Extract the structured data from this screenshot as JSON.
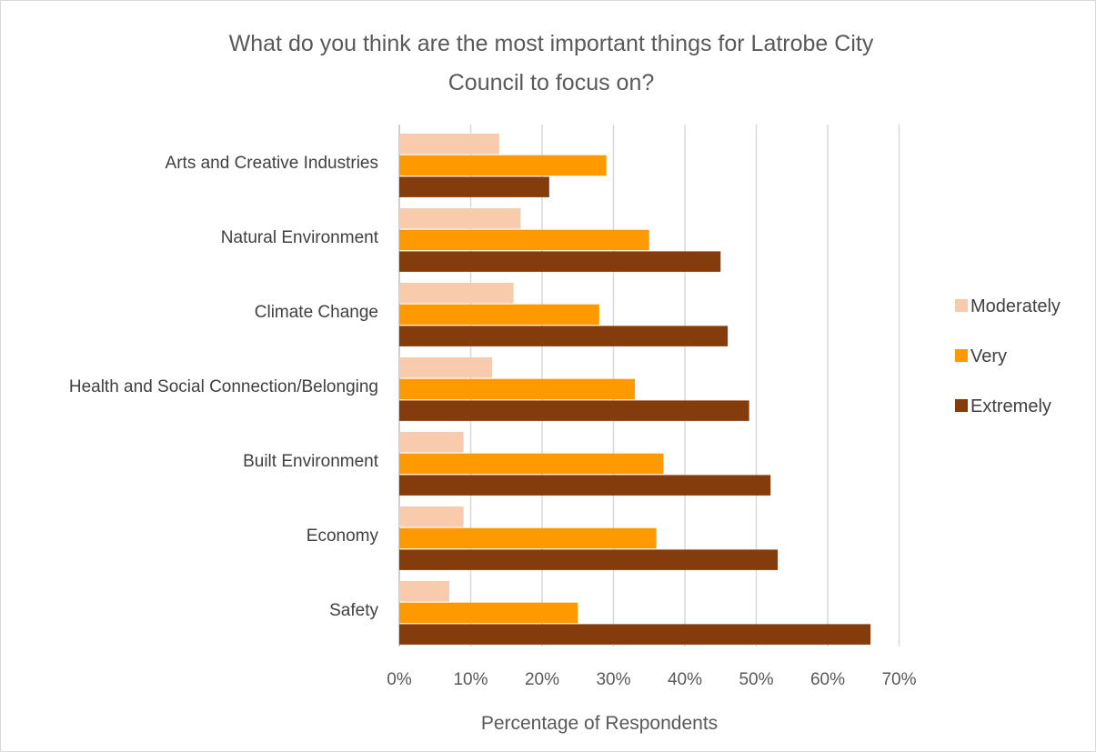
{
  "chart_data": {
    "type": "bar",
    "orientation": "horizontal",
    "title_lines": [
      "What do you think are the most important things for Latrobe City",
      "Council to focus on?"
    ],
    "xlabel": "Percentage of Respondents",
    "ylabel": "",
    "xlim": [
      0,
      70
    ],
    "x_ticks": [
      "0%",
      "10%",
      "20%",
      "30%",
      "40%",
      "50%",
      "60%",
      "70%"
    ],
    "grid": true,
    "legend_position": "right",
    "categories": [
      "Arts and Creative Industries",
      "Natural Environment",
      "Climate Change",
      "Health and Social Connection/Belonging",
      "Built Environment",
      "Economy",
      "Safety"
    ],
    "series": [
      {
        "name": "Moderately",
        "color": "#f8cbad",
        "values": [
          14,
          17,
          16,
          13,
          9,
          9,
          7
        ]
      },
      {
        "name": "Very",
        "color": "#ff9900",
        "values": [
          29,
          35,
          28,
          33,
          37,
          36,
          25
        ]
      },
      {
        "name": "Extremely",
        "color": "#843c0c",
        "values": [
          21,
          45,
          46,
          49,
          52,
          53,
          66
        ]
      }
    ]
  }
}
